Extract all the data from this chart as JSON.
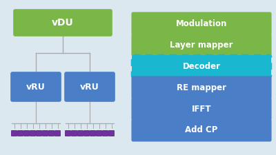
{
  "bg_color": "#dce8f0",
  "green_color": "#7ab648",
  "blue_color": "#4a7ec7",
  "teal_color": "#1ab8d0",
  "purple_color": "#7030a0",
  "line_color": "#aaaaaa",
  "vdu_label": "vDU",
  "vru_label": "vRU",
  "stack_labels": [
    "Modulation",
    "Layer mapper",
    "Decoder",
    "RE mapper",
    "IFFT",
    "Add CP"
  ],
  "stack_colors": [
    "#7ab648",
    "#7ab648",
    "#1ab8d0",
    "#4a7ec7",
    "#4a7ec7",
    "#4a7ec7"
  ],
  "stack_border_dashed": [
    false,
    false,
    true,
    false,
    false,
    false
  ],
  "stack_border_colors": [
    "#7ab648",
    "#7ab648",
    "#1ab8d0",
    "#4a7ec7",
    "#4a7ec7",
    "#4a7ec7"
  ],
  "num_antennas": 8,
  "figsize": [
    4.0,
    2.25
  ],
  "dpi": 100
}
